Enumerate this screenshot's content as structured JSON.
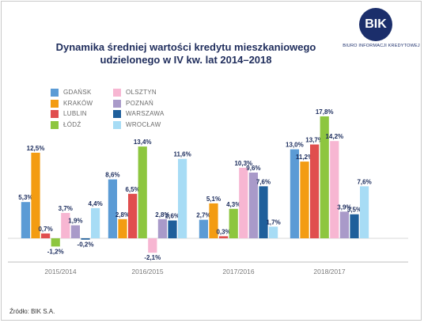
{
  "logo": {
    "mark": "BIK",
    "subtitle": "BIURO INFORMACJI KREDYTOWEJ"
  },
  "chart_data": {
    "type": "bar",
    "title": "Dynamika średniej wartości kredytu mieszkaniowego udzielonego w IV kw. lat 2014–2018",
    "title_lines": [
      "Dynamika średniej wartości kredytu mieszkaniowego",
      "udzielonego w IV kw. lat 2014–2018"
    ],
    "categories": [
      "2015/2014",
      "2016/2015",
      "2017/2016",
      "2018/2017"
    ],
    "series": [
      {
        "name": "GDAŃSK",
        "color": "#5b9bd5",
        "values": [
          5.3,
          8.6,
          2.7,
          13.0
        ]
      },
      {
        "name": "KRAKÓW",
        "color": "#f39c12",
        "values": [
          12.5,
          2.8,
          5.1,
          11.2
        ]
      },
      {
        "name": "LUBLIN",
        "color": "#e04e4e",
        "values": [
          0.7,
          6.5,
          0.3,
          13.7
        ]
      },
      {
        "name": "ŁÓDŹ",
        "color": "#8dc63f",
        "values": [
          -1.2,
          13.4,
          4.3,
          17.8
        ]
      },
      {
        "name": "OLSZTYN",
        "color": "#f7b6d2",
        "values": [
          3.7,
          -2.1,
          10.3,
          14.2
        ]
      },
      {
        "name": "POZNAŃ",
        "color": "#a99ac9",
        "values": [
          1.9,
          2.8,
          9.6,
          3.9
        ]
      },
      {
        "name": "WARSZAWA",
        "color": "#1f5f9b",
        "values": [
          -0.2,
          2.6,
          7.6,
          3.5
        ]
      },
      {
        "name": "WROCŁAW",
        "color": "#a7dcf5",
        "values": [
          4.4,
          11.6,
          1.7,
          7.6
        ]
      }
    ],
    "value_suffix": "%",
    "ylim": [
      -3,
      19
    ],
    "grid": false,
    "legend_position": "top-left"
  },
  "source": "Źródło: BIK S.A."
}
